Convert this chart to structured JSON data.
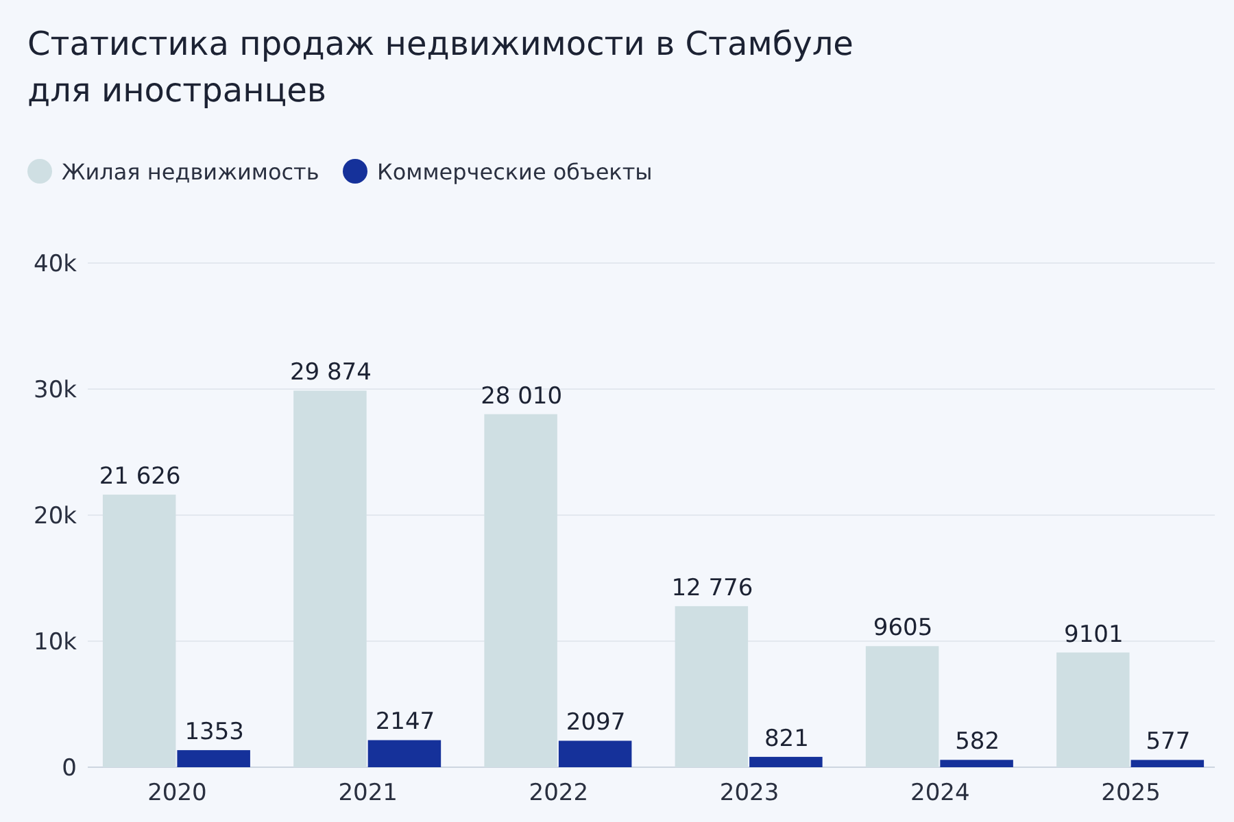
{
  "chart_data": {
    "type": "bar",
    "title": "Статистика продаж недвижимости в Стамбуле для иностранцев",
    "categories": [
      "2020",
      "2021",
      "2022",
      "2023",
      "2024",
      "2025"
    ],
    "series": [
      {
        "name": "Жилая недвижимость",
        "color": "#cfdfe3",
        "values": [
          21626,
          29874,
          28010,
          12776,
          9605,
          9101
        ],
        "value_labels": [
          "21 626",
          "29 874",
          "28 010",
          "12 776",
          "9605",
          "9101"
        ]
      },
      {
        "name": "Коммерческие объекты",
        "color": "#15319a",
        "values": [
          1353,
          2147,
          2097,
          821,
          582,
          577
        ],
        "value_labels": [
          "1353",
          "2147",
          "2097",
          "821",
          "582",
          "577"
        ]
      }
    ],
    "ylim": [
      0,
      40000
    ],
    "yticks": [
      {
        "value": 0,
        "label": "0"
      },
      {
        "value": 10000,
        "label": "10k"
      },
      {
        "value": 20000,
        "label": "20k"
      },
      {
        "value": 30000,
        "label": "30k"
      },
      {
        "value": 40000,
        "label": "40k"
      }
    ],
    "grid": "y",
    "legend": "top left"
  }
}
